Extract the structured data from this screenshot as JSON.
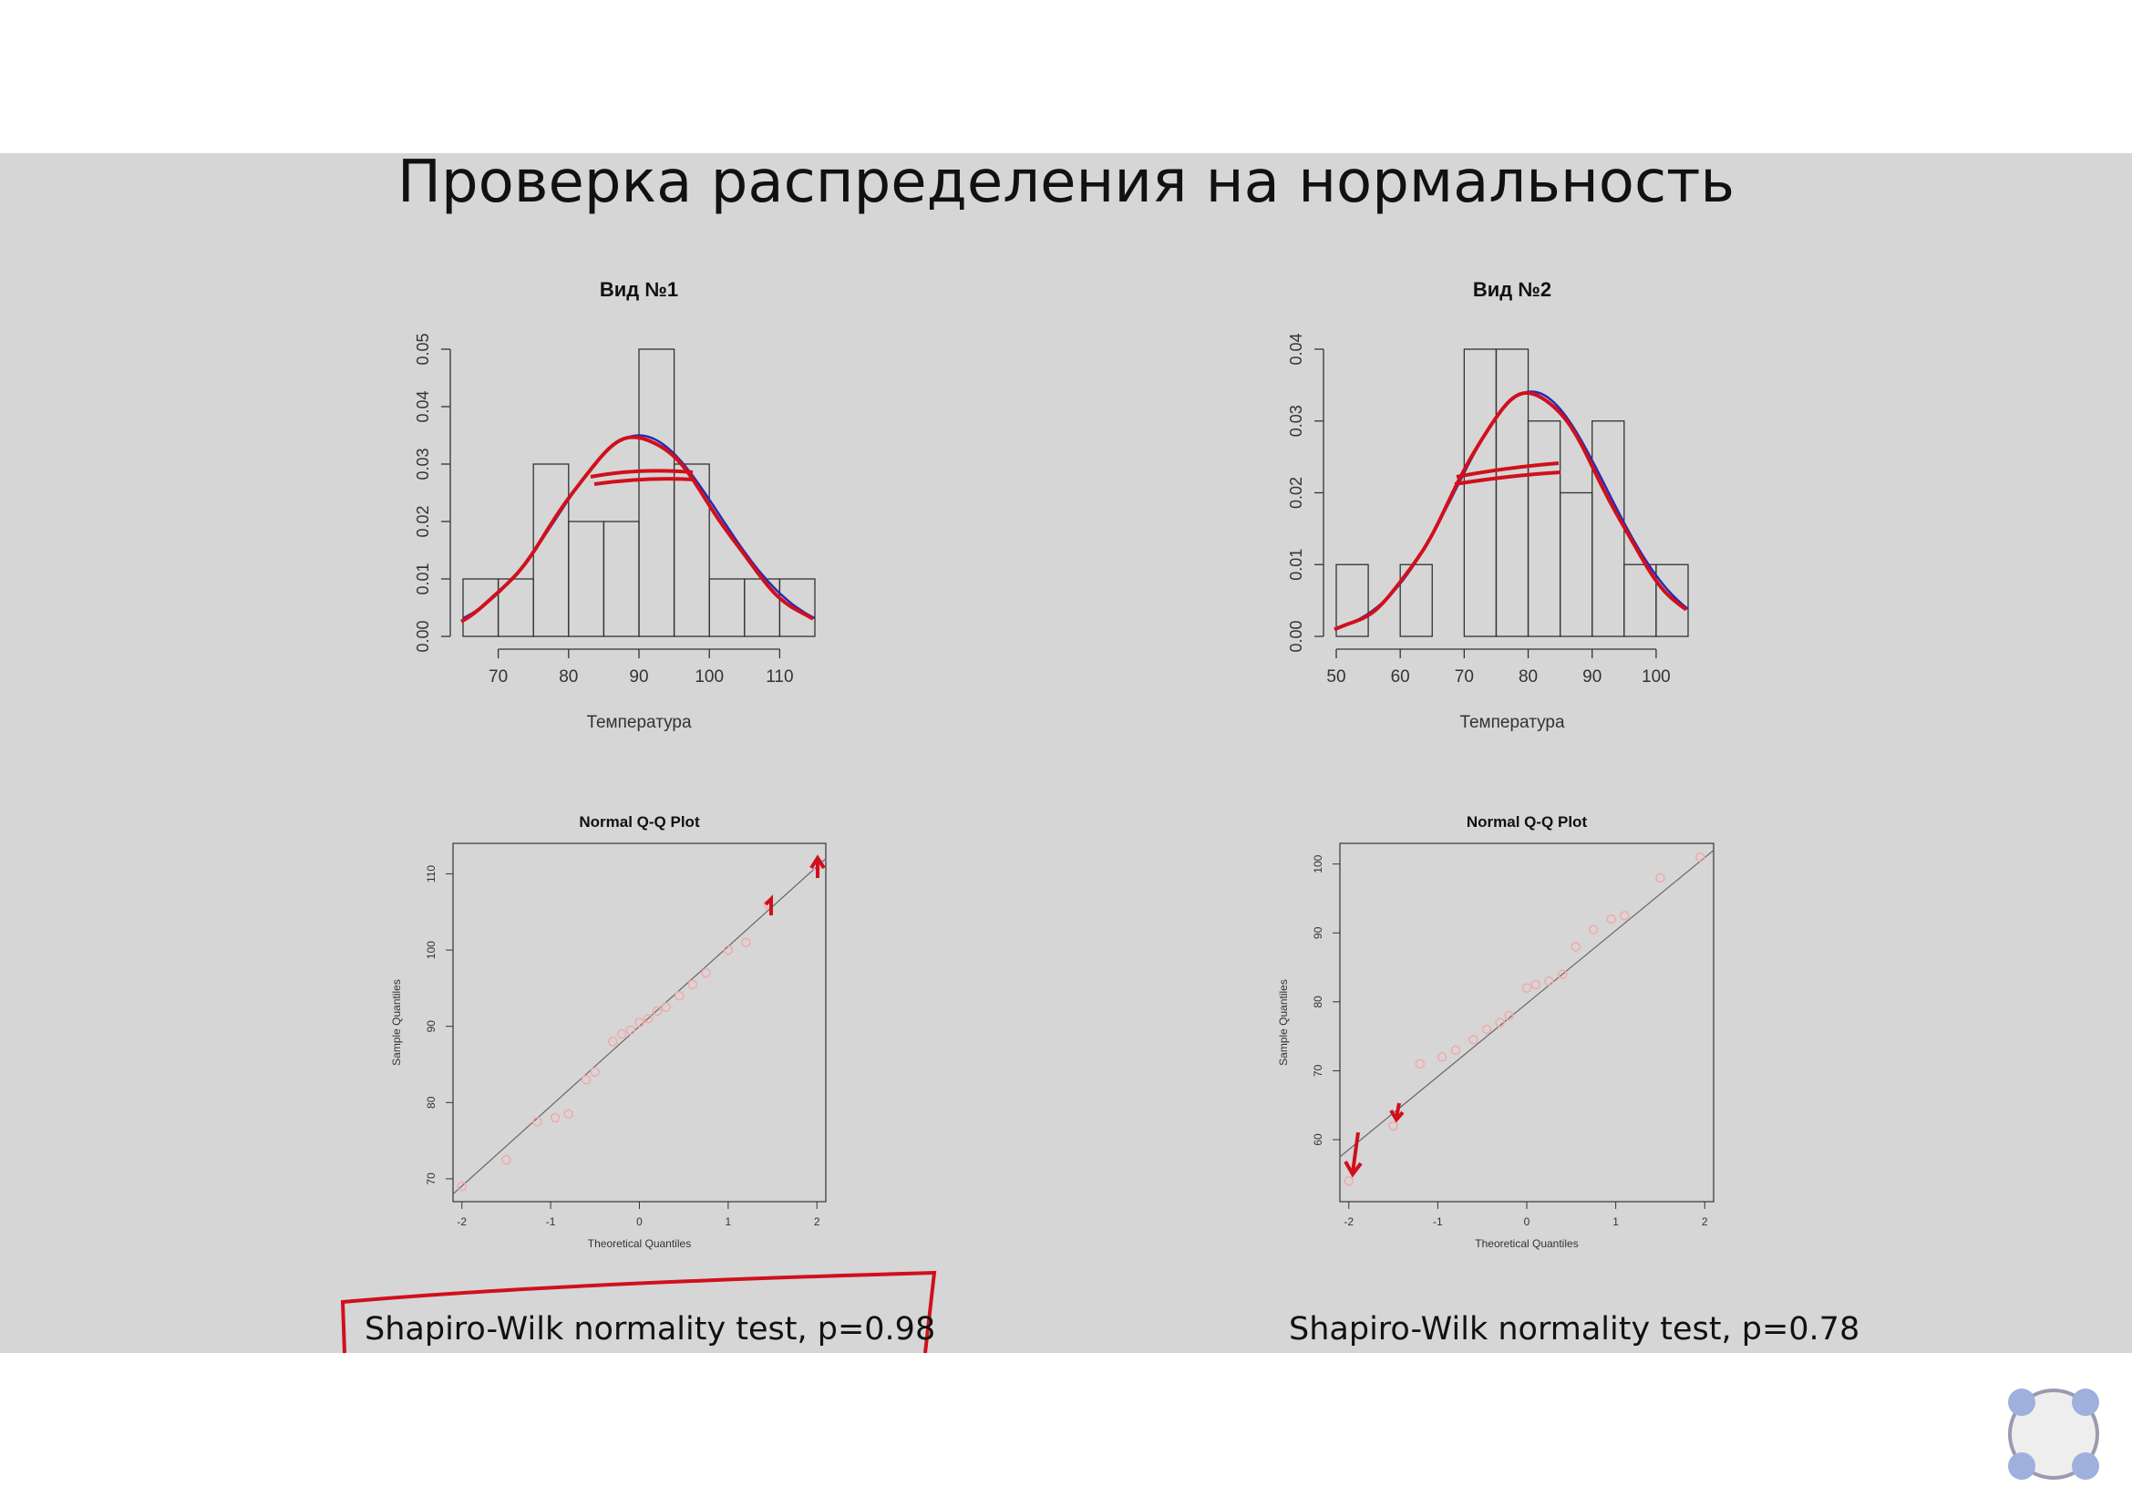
{
  "slide": {
    "title": "Проверка распределения на нормальность",
    "test_left": "Shapiro-Wilk normality test, p=0.98",
    "test_right": "Shapiro-Wilk normality test, p=0.78",
    "widget_icon": "four-dots-menu-icon"
  },
  "colors": {
    "background": "#d6d6d6",
    "annotation_red": "#d0101c",
    "density_blue": "#2a2ab0",
    "qq_points": "#f4a9a9"
  },
  "chart_data": [
    {
      "type": "bar",
      "subtype": "histogram",
      "title": "Вид №1",
      "xlabel": "Температура",
      "ylabel": "",
      "bin_edges": [
        65,
        70,
        75,
        80,
        85,
        90,
        95,
        100,
        105,
        110,
        115
      ],
      "values": [
        0.01,
        0.01,
        0.03,
        0.02,
        0.02,
        0.05,
        0.03,
        0.01,
        0.01,
        0.01
      ],
      "xlim": [
        65,
        115
      ],
      "ylim": [
        0,
        0.05
      ],
      "xticks": [
        70,
        80,
        90,
        100,
        110
      ],
      "yticks": [
        0.0,
        0.01,
        0.02,
        0.03,
        0.04,
        0.05
      ],
      "density_mean": 90,
      "density_sd": 11.4
    },
    {
      "type": "bar",
      "subtype": "histogram",
      "title": "Вид №2",
      "xlabel": "Температура",
      "ylabel": "",
      "bin_edges": [
        50,
        55,
        60,
        65,
        70,
        75,
        80,
        85,
        90,
        95,
        100,
        105
      ],
      "values": [
        0.01,
        0.0,
        0.01,
        0.0,
        0.04,
        0.04,
        0.03,
        0.02,
        0.03,
        0.01,
        0.01
      ],
      "xlim": [
        50,
        105
      ],
      "ylim": [
        0,
        0.04
      ],
      "xticks": [
        50,
        60,
        70,
        80,
        90,
        100
      ],
      "yticks": [
        0.0,
        0.01,
        0.02,
        0.03,
        0.04
      ],
      "density_mean": 80.5,
      "density_sd": 11.7
    },
    {
      "type": "scatter",
      "subtype": "qq",
      "title": "Normal Q-Q Plot",
      "xlabel": "Theoretical Quantiles",
      "ylabel": "Sample Quantiles",
      "xlim": [
        -2.1,
        2.1
      ],
      "ylim": [
        67,
        114
      ],
      "xticks": [
        -2,
        -1,
        0,
        1,
        2
      ],
      "xtick_labels": [
        "-2",
        "-1",
        "0",
        "1",
        "2"
      ],
      "yticks": [
        70,
        80,
        90,
        100,
        110
      ],
      "points": [
        [
          -2.0,
          69
        ],
        [
          -1.5,
          72.5
        ],
        [
          -1.15,
          77.5
        ],
        [
          -0.95,
          78
        ],
        [
          -0.8,
          78.5
        ],
        [
          -0.6,
          83
        ],
        [
          -0.5,
          84
        ],
        [
          -0.3,
          88
        ],
        [
          -0.2,
          89
        ],
        [
          -0.1,
          89.5
        ],
        [
          0.0,
          90.5
        ],
        [
          0.1,
          91
        ],
        [
          0.2,
          92
        ],
        [
          0.3,
          92.5
        ],
        [
          0.45,
          94
        ],
        [
          0.6,
          95.5
        ],
        [
          0.75,
          97
        ],
        [
          1.0,
          100
        ],
        [
          1.2,
          101
        ],
        [
          1.45,
          106
        ],
        [
          2.0,
          111
        ]
      ],
      "line": [
        [
          -2.1,
          68
        ],
        [
          2.1,
          112
        ]
      ]
    },
    {
      "type": "scatter",
      "subtype": "qq",
      "title": "Normal Q-Q Plot",
      "xlabel": "Theoretical Quantiles",
      "ylabel": "Sample Quantiles",
      "xlim": [
        -2.1,
        2.1
      ],
      "ylim": [
        51,
        103
      ],
      "xticks": [
        -2,
        -1,
        0,
        1,
        2
      ],
      "xtick_labels": [
        "-2",
        "-1",
        "0",
        "1",
        "2"
      ],
      "yticks": [
        60,
        70,
        80,
        90,
        100
      ],
      "points": [
        [
          -2.0,
          54
        ],
        [
          -1.5,
          62
        ],
        [
          -1.2,
          71
        ],
        [
          -0.95,
          72
        ],
        [
          -0.8,
          73
        ],
        [
          -0.6,
          74.5
        ],
        [
          -0.45,
          76
        ],
        [
          -0.3,
          77
        ],
        [
          -0.2,
          78
        ],
        [
          0.0,
          82
        ],
        [
          0.1,
          82.5
        ],
        [
          0.25,
          83
        ],
        [
          0.4,
          84
        ],
        [
          0.55,
          88
        ],
        [
          0.75,
          90.5
        ],
        [
          0.95,
          92
        ],
        [
          1.1,
          92.5
        ],
        [
          1.5,
          98
        ],
        [
          1.95,
          101
        ]
      ],
      "line": [
        [
          -2.1,
          57.5
        ],
        [
          2.1,
          102
        ]
      ]
    }
  ]
}
